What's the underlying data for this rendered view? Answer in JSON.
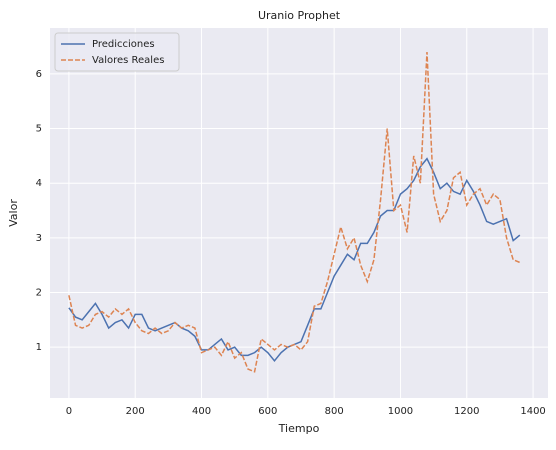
{
  "chart_data": {
    "type": "line",
    "title": "Uranio Prophet",
    "xlabel": "Tiempo",
    "ylabel": "Valor",
    "x": [
      0,
      20,
      40,
      60,
      80,
      100,
      120,
      140,
      160,
      180,
      200,
      220,
      240,
      260,
      280,
      300,
      320,
      340,
      360,
      380,
      400,
      420,
      440,
      460,
      480,
      500,
      520,
      540,
      560,
      580,
      600,
      620,
      640,
      660,
      680,
      700,
      720,
      740,
      760,
      780,
      800,
      820,
      840,
      860,
      880,
      900,
      920,
      940,
      960,
      980,
      1000,
      1020,
      1040,
      1060,
      1080,
      1100,
      1120,
      1140,
      1160,
      1180,
      1200,
      1220,
      1240,
      1260,
      1280,
      1300,
      1320,
      1340,
      1360
    ],
    "series": [
      {
        "name": "Predicciones",
        "color": "#4c72b0",
        "dash": false,
        "values": [
          1.72,
          1.55,
          1.5,
          1.65,
          1.8,
          1.6,
          1.35,
          1.45,
          1.5,
          1.35,
          1.6,
          1.6,
          1.35,
          1.3,
          1.35,
          1.4,
          1.45,
          1.35,
          1.3,
          1.2,
          0.95,
          0.95,
          1.05,
          1.15,
          0.95,
          1.0,
          0.85,
          0.85,
          0.9,
          1.0,
          0.9,
          0.75,
          0.9,
          1.0,
          1.05,
          1.1,
          1.4,
          1.7,
          1.7,
          2.0,
          2.3,
          2.5,
          2.7,
          2.6,
          2.9,
          2.9,
          3.1,
          3.4,
          3.5,
          3.5,
          3.8,
          3.9,
          4.05,
          4.3,
          4.45,
          4.2,
          3.9,
          4.0,
          3.85,
          3.8,
          4.05,
          3.85,
          3.6,
          3.3,
          3.25,
          3.3,
          3.35,
          2.95,
          3.05
        ]
      },
      {
        "name": "Valores Reales",
        "color": "#dd8452",
        "dash": true,
        "values": [
          1.95,
          1.4,
          1.35,
          1.4,
          1.6,
          1.65,
          1.55,
          1.7,
          1.6,
          1.7,
          1.45,
          1.3,
          1.25,
          1.35,
          1.25,
          1.3,
          1.45,
          1.35,
          1.4,
          1.35,
          0.9,
          0.95,
          1.0,
          0.85,
          1.1,
          0.8,
          0.9,
          0.6,
          0.55,
          1.15,
          1.05,
          0.95,
          1.05,
          1.0,
          1.05,
          0.95,
          1.1,
          1.75,
          1.8,
          2.2,
          2.7,
          3.2,
          2.8,
          3.0,
          2.5,
          2.2,
          2.6,
          3.7,
          5.0,
          3.5,
          3.6,
          3.1,
          4.5,
          4.0,
          6.4,
          3.8,
          3.3,
          3.5,
          4.1,
          4.2,
          3.6,
          3.8,
          3.9,
          3.6,
          3.8,
          3.7,
          3.0,
          2.6,
          2.55
        ]
      }
    ],
    "xlim": [
      -57,
      1445
    ],
    "xticks": [
      0,
      200,
      400,
      600,
      800,
      1000,
      1200,
      1400
    ],
    "ylim": [
      0.07,
      6.84
    ],
    "yticks": [
      1,
      2,
      3,
      4,
      5,
      6
    ],
    "grid": true,
    "legend": "upper left"
  }
}
